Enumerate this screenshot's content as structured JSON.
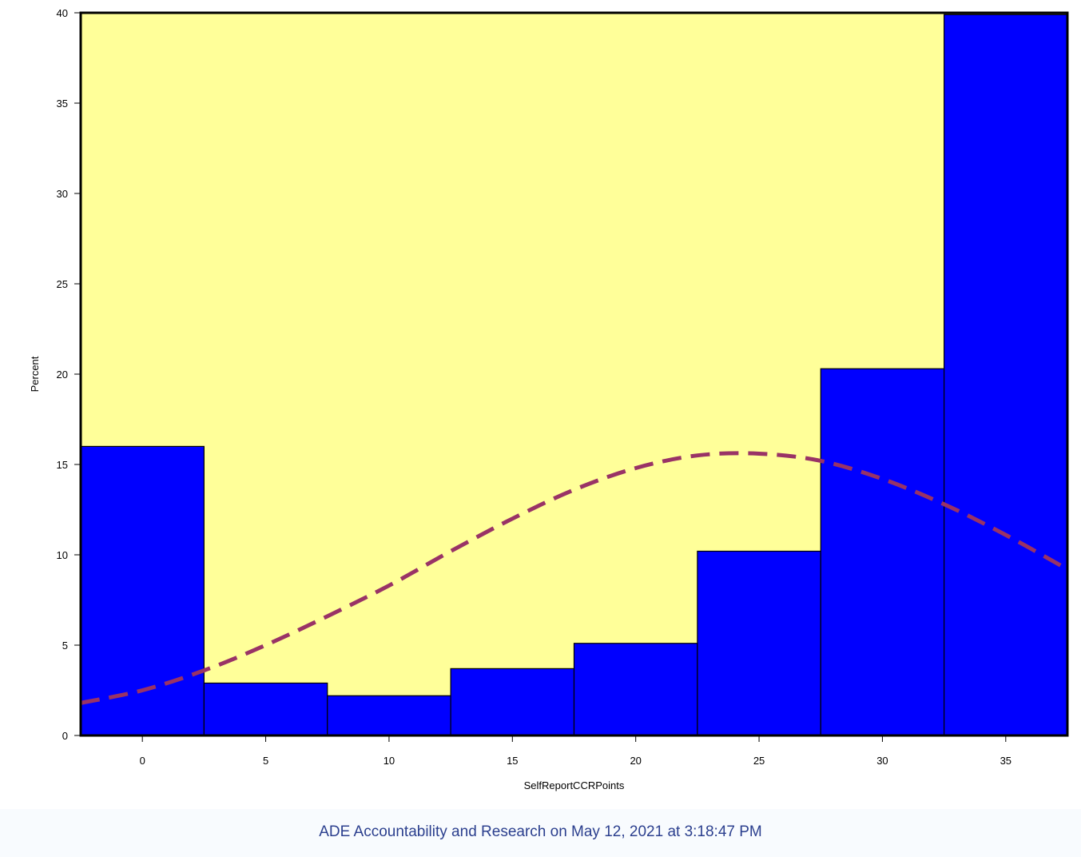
{
  "colors": {
    "plot_background": "#ffff99",
    "bar_fill": "#0000ff",
    "bar_outline": "#000000",
    "curve": "#993366",
    "footer_text": "#2b3f8e"
  },
  "chart_data": {
    "type": "bar",
    "subtype": "histogram",
    "xlabel": "SelfReportCCRPoints",
    "ylabel": "Percent",
    "bin_width": 5,
    "bin_midpoints": [
      0,
      5,
      10,
      15,
      20,
      25,
      30,
      35
    ],
    "values": [
      16.0,
      2.9,
      2.2,
      3.7,
      5.1,
      10.2,
      20.3,
      39.9
    ],
    "xlim": [
      -2.5,
      37.5
    ],
    "ylim": [
      0,
      40
    ],
    "x_ticks": [
      "0",
      "5",
      "10",
      "15",
      "20",
      "25",
      "30",
      "35"
    ],
    "y_ticks": [
      "0",
      "5",
      "10",
      "15",
      "20",
      "25",
      "30",
      "35",
      "40"
    ],
    "y_tick_values": [
      0,
      5,
      10,
      15,
      20,
      25,
      30,
      35,
      40
    ],
    "normal_curve": {
      "style": "dashed",
      "x": [
        -2.5,
        0,
        2.5,
        5,
        7.5,
        10,
        12.5,
        15,
        17.5,
        20,
        22.5,
        25,
        27.5,
        30,
        32.5,
        35,
        37.5
      ],
      "y": [
        1.8,
        2.5,
        3.6,
        5.0,
        6.6,
        8.3,
        10.2,
        12.0,
        13.6,
        14.8,
        15.5,
        15.6,
        15.2,
        14.2,
        12.8,
        11.1,
        9.2
      ]
    }
  },
  "footer": {
    "text": "ADE Accountability and Research on May 12, 2021 at 3:18:47 PM"
  }
}
